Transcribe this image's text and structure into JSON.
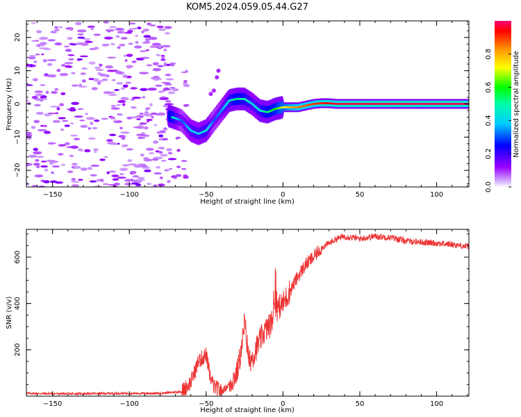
{
  "title": "KOM5.2024.059.05.44.G27",
  "chart_data": [
    {
      "type": "heatmap",
      "xlabel": "Height of straight line (km)",
      "ylabel": "Frequency (Hz)",
      "xlim": [
        -167,
        121
      ],
      "ylim": [
        -25,
        25
      ],
      "xticks": [
        -150,
        -100,
        -50,
        0,
        50,
        100
      ],
      "yticks": [
        -20,
        -10,
        0,
        10,
        20
      ],
      "colorbar": {
        "label": "Normalized spectral amplitude",
        "range": [
          0,
          1
        ],
        "ticks": [
          "0.0",
          "0.2",
          "0.4",
          "0.6",
          "0.8"
        ],
        "colormap": "rainbow"
      },
      "ridge": {
        "description_points_x": [
          -72,
          -66,
          -60,
          -55,
          -50,
          -45,
          -40,
          -35,
          -30,
          -25,
          -20,
          -15,
          -10,
          -5,
          0,
          5,
          10,
          15,
          20,
          25,
          30,
          35,
          121
        ],
        "frequency": [
          -4,
          -5,
          -8,
          -9,
          -8,
          -5,
          -2,
          1,
          1.5,
          1.5,
          0,
          -2,
          -2.5,
          -1.5,
          -1,
          -1,
          -1,
          -0.5,
          0,
          0.2,
          0.2,
          0,
          0
        ],
        "amplitude": [
          0.5,
          0.3,
          0.4,
          0.4,
          0.45,
          0.3,
          0.35,
          0.45,
          0.55,
          0.5,
          0.4,
          0.45,
          0.55,
          0.6,
          0.7,
          0.8,
          0.85,
          0.88,
          0.9,
          0.92,
          0.95,
          0.97,
          0.98
        ]
      }
    },
    {
      "type": "line",
      "xlabel": "Height of straight line (km)",
      "ylabel": "SNR (v/v)",
      "xlim": [
        -167,
        121
      ],
      "ylim": [
        0,
        720
      ],
      "xticks": [
        -150,
        -100,
        -50,
        0,
        50,
        100
      ],
      "yticks": [
        200,
        400,
        600
      ],
      "color": "#ee3333",
      "series": [
        {
          "x": [
            -167,
            -140,
            -110,
            -80,
            -66,
            -60,
            -55,
            -50,
            -48,
            -45,
            -42,
            -40,
            -35,
            -30,
            -27,
            -25,
            -22,
            -20,
            -15,
            -12,
            -8,
            -5,
            0,
            5,
            10,
            15,
            20,
            25,
            30,
            35,
            40,
            50,
            60,
            70,
            80,
            90,
            100,
            110,
            121
          ],
          "y": [
            12,
            10,
            12,
            12,
            20,
            60,
            150,
            180,
            100,
            40,
            30,
            20,
            50,
            100,
            200,
            320,
            150,
            170,
            240,
            280,
            310,
            370,
            400,
            460,
            520,
            570,
            600,
            640,
            660,
            680,
            690,
            680,
            690,
            685,
            670,
            665,
            660,
            655,
            645
          ]
        }
      ]
    }
  ]
}
